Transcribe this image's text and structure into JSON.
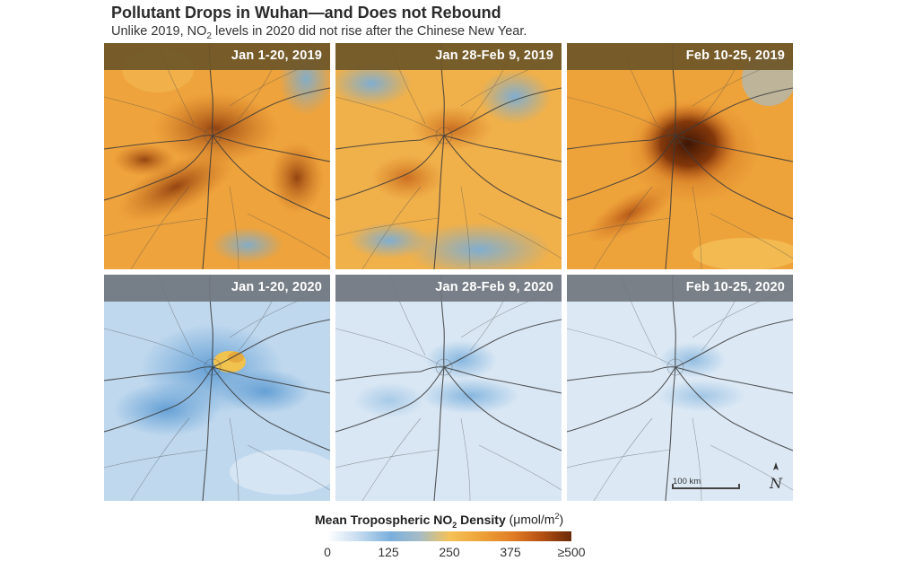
{
  "header": {
    "title": "Pollutant Drops in Wuhan—and Does not Rebound",
    "subtitle_before": "Unlike 2019, NO",
    "subtitle_sub": "2",
    "subtitle_after": " levels in 2020 did not rise after the Chinese New Year."
  },
  "panels": [
    {
      "label": "Jan 1-20, 2019",
      "year": "2019",
      "level": "high"
    },
    {
      "label": "Jan 28-Feb 9, 2019",
      "year": "2019",
      "level": "moderate"
    },
    {
      "label": "Feb 10-25, 2019",
      "year": "2019",
      "level": "very high"
    },
    {
      "label": "Jan 1-20, 2020",
      "year": "2020",
      "level": "low"
    },
    {
      "label": "Jan 28-Feb 9, 2020",
      "year": "2020",
      "level": "very low"
    },
    {
      "label": "Feb 10-25, 2020",
      "year": "2020",
      "level": "very low"
    }
  ],
  "scale": {
    "label": "100 km",
    "north_symbol": "N"
  },
  "legend": {
    "title_bold": "Mean Tropospheric NO",
    "title_sub": "2",
    "title_bold_end": " Density",
    "units_before": " (μmol/m",
    "units_sup": "2",
    "units_after": ")",
    "ticks": [
      "0",
      "125",
      "250",
      "375",
      "≥500"
    ],
    "colors": [
      "#ffffff",
      "#7aafdc",
      "#f4c257",
      "#e07d25",
      "#6a2a08"
    ]
  }
}
